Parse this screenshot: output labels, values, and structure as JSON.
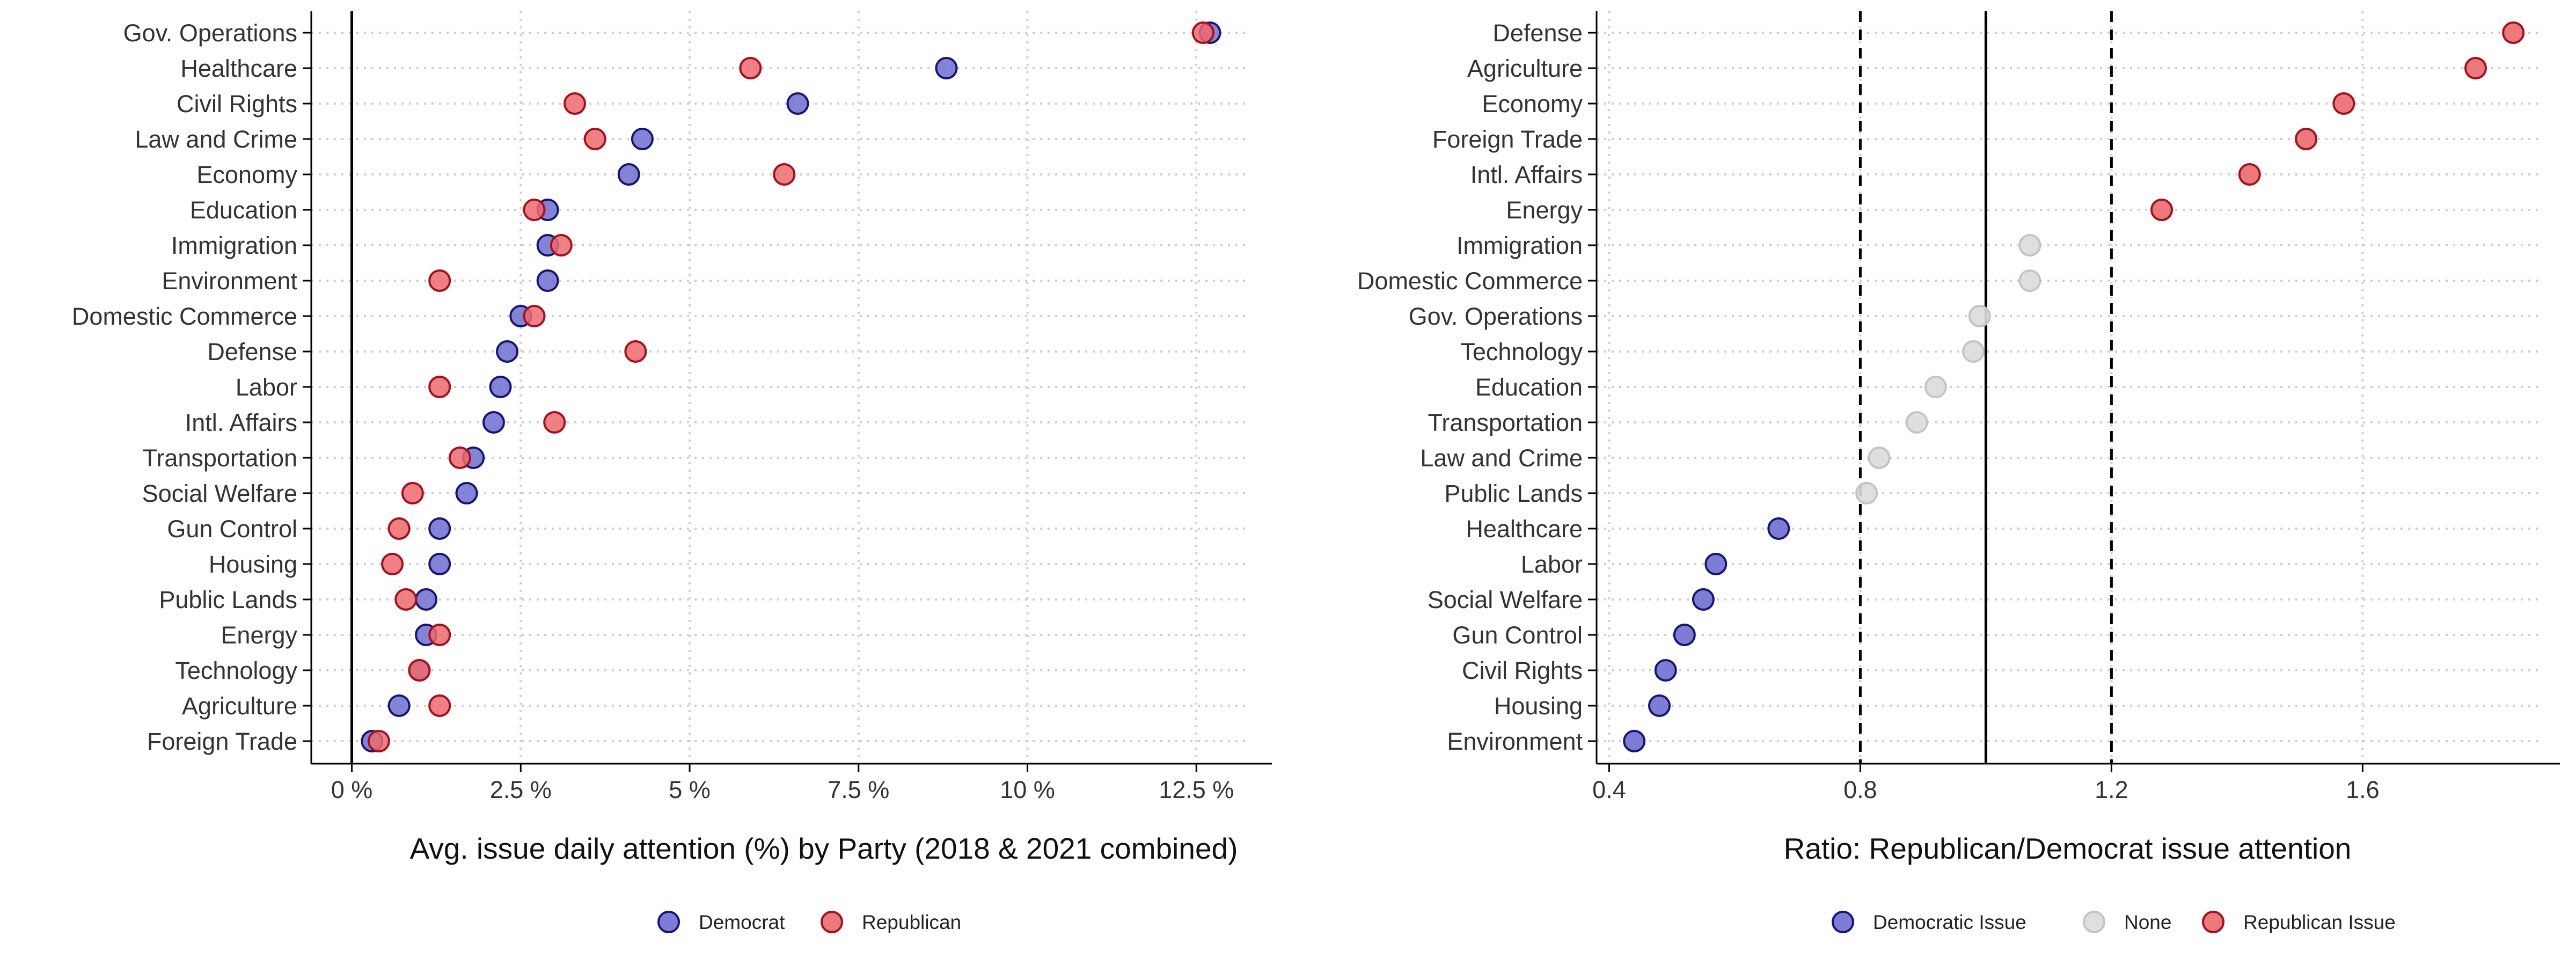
{
  "colors": {
    "democrat_fill": "#6f6fd0",
    "democrat_stroke": "#14147a",
    "republican_fill": "#ec6a6e",
    "republican_stroke": "#a80f19",
    "none_fill": "#dcdcdc",
    "none_stroke": "#c4c4c4",
    "grid": "#cfcfcf",
    "text": "#333333"
  },
  "chart_data": [
    {
      "type": "scatter",
      "title": "",
      "xlabel": "Avg. issue daily attention (%) by Party (2018 & 2021 combined)",
      "ylabel": "",
      "xlim": [
        -0.6,
        13.3
      ],
      "xticks": [
        0,
        2.5,
        5,
        7.5,
        10,
        12.5
      ],
      "xtick_labels": [
        "0 %",
        "2.5 %",
        "5 %",
        "7.5 %",
        "10 %",
        "12.5 %"
      ],
      "vline": 0,
      "grid": true,
      "legend_position": "bottom",
      "categories": [
        "Gov. Operations",
        "Healthcare",
        "Civil Rights",
        "Law and Crime",
        "Economy",
        "Education",
        "Immigration",
        "Environment",
        "Domestic Commerce",
        "Defense",
        "Labor",
        "Intl. Affairs",
        "Transportation",
        "Social Welfare",
        "Gun Control",
        "Housing",
        "Public Lands",
        "Energy",
        "Technology",
        "Agriculture",
        "Foreign Trade"
      ],
      "series": [
        {
          "name": "Democrat",
          "values": [
            12.7,
            8.8,
            6.6,
            4.3,
            4.1,
            2.9,
            2.9,
            2.9,
            2.5,
            2.3,
            2.2,
            2.1,
            1.8,
            1.7,
            1.3,
            1.3,
            1.1,
            1.1,
            1.0,
            0.7,
            0.3
          ]
        },
        {
          "name": "Republican",
          "values": [
            12.6,
            5.9,
            3.3,
            3.6,
            6.4,
            2.7,
            3.1,
            1.3,
            2.7,
            4.2,
            1.3,
            3.0,
            1.6,
            0.9,
            0.7,
            0.6,
            0.8,
            1.3,
            1.0,
            1.3,
            0.4
          ]
        }
      ]
    },
    {
      "type": "scatter",
      "title": "",
      "xlabel": "Ratio: Republican/Democrat issue attention",
      "ylabel": "",
      "xlim": [
        0.38,
        1.88
      ],
      "xticks": [
        0.4,
        0.8,
        1.2,
        1.6
      ],
      "xtick_labels": [
        "0.4",
        "0.8",
        "1.2",
        "1.6"
      ],
      "vline": 1.0,
      "dashed_vlines": [
        0.8,
        1.2
      ],
      "grid": true,
      "legend_position": "bottom",
      "categories": [
        "Defense",
        "Agriculture",
        "Economy",
        "Foreign Trade",
        "Intl. Affairs",
        "Energy",
        "Immigration",
        "Domestic Commerce",
        "Gov. Operations",
        "Technology",
        "Education",
        "Transportation",
        "Law and Crime",
        "Public Lands",
        "Healthcare",
        "Labor",
        "Social Welfare",
        "Gun Control",
        "Civil Rights",
        "Housing",
        "Environment"
      ],
      "values": [
        1.84,
        1.78,
        1.57,
        1.51,
        1.42,
        1.28,
        1.07,
        1.07,
        0.99,
        0.98,
        0.92,
        0.89,
        0.83,
        0.81,
        0.67,
        0.57,
        0.55,
        0.52,
        0.49,
        0.48,
        0.44
      ],
      "groups": [
        "Republican Issue",
        "Republican Issue",
        "Republican Issue",
        "Republican Issue",
        "Republican Issue",
        "Republican Issue",
        "None",
        "None",
        "None",
        "None",
        "None",
        "None",
        "None",
        "None",
        "Democratic Issue",
        "Democratic Issue",
        "Democratic Issue",
        "Democratic Issue",
        "Democratic Issue",
        "Democratic Issue",
        "Democratic Issue"
      ],
      "legend": [
        "Democratic Issue",
        "None",
        "Republican Issue"
      ]
    }
  ]
}
